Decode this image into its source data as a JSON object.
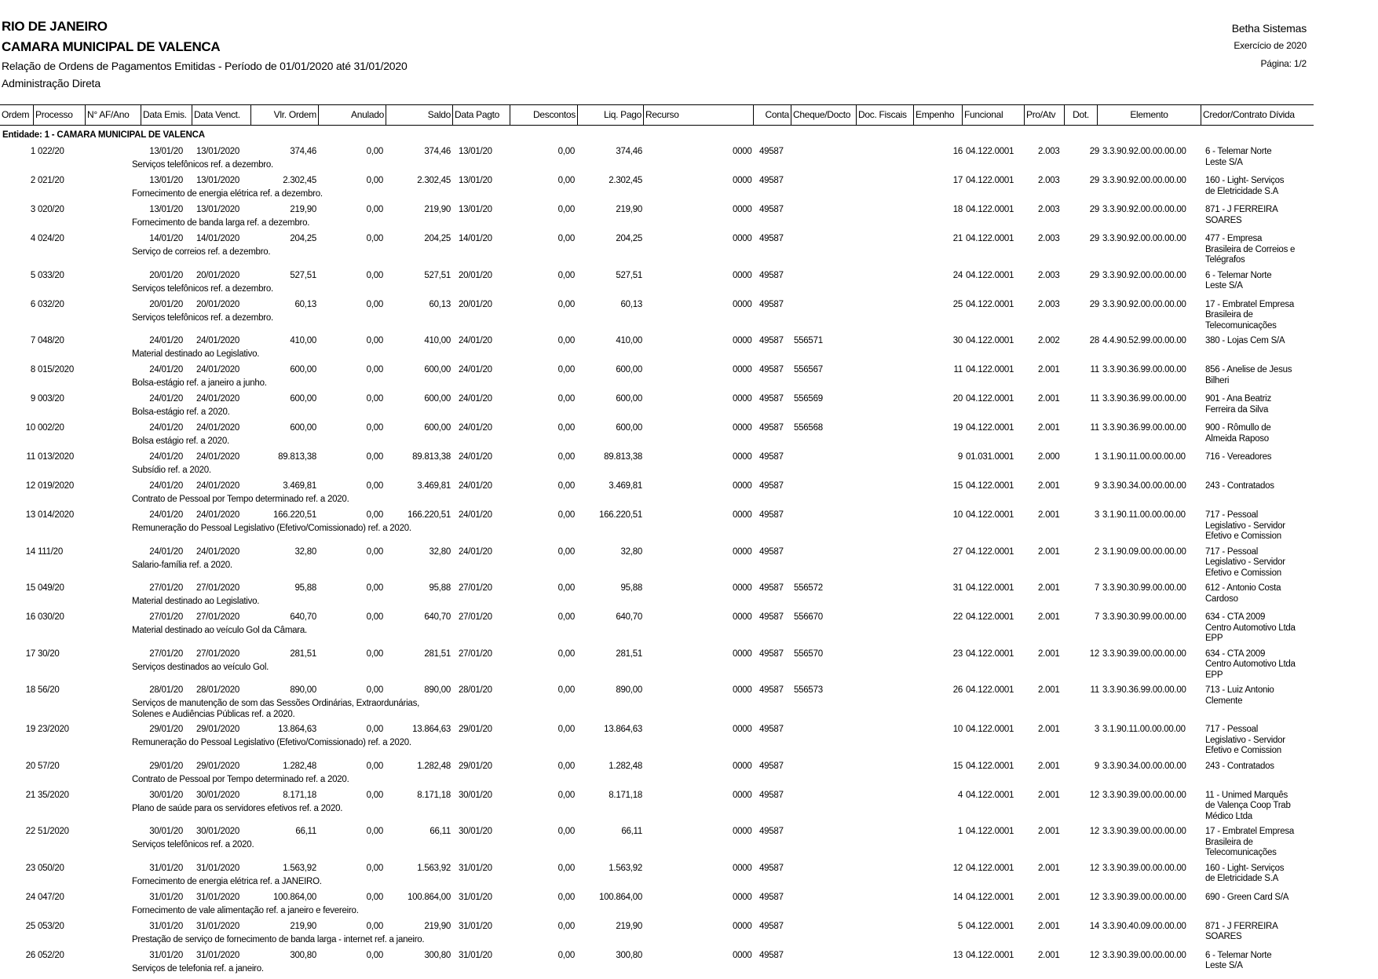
{
  "header": {
    "state": "RIO DE JANEIRO",
    "entity": "CAMARA MUNICIPAL DE VALENCA",
    "report_title": "Relação de Ordens de Pagamentos Emitidas - Período de 01/01/2020 até 31/01/2020",
    "administration": "Administração Direta",
    "vendor": "Betha Sistemas",
    "exercise": "Exercício de 2020",
    "page": "Página: 1/2"
  },
  "columns": [
    "Ordem",
    "Processo",
    "N° AF/Ano",
    "Data Emis.",
    "Data Venct.",
    "Vlr. Ordem",
    "Anulado",
    "Saldo",
    "Data Pagto",
    "Descontos",
    "Liq. Pago",
    "Recurso",
    "Conta",
    "Cheque/Docto",
    "Doc. Fiscais",
    "Empenho",
    "Funcional",
    "Pro/Atv",
    "Dot.",
    "Elemento",
    "Credor/Contrato Dívida"
  ],
  "entity_group": "Entidade: 1 - CAMARA MUNICIPAL DE VALENCA",
  "rows": [
    {
      "ordem": "1",
      "processo": "022/20",
      "emis": "13/01/20",
      "venct": "13/01/2020",
      "vlr": "374,46",
      "anulado": "0,00",
      "saldo": "374,46",
      "pagto": "13/01/20",
      "descontos": "0,00",
      "liq": "374,46",
      "recurso": "0000",
      "conta": "49587",
      "cheque": "",
      "empenho": "16",
      "funcional": "04.122.0001",
      "proatv": "2.003",
      "dot": "29",
      "elemento": "3.3.90.92.00.00.00.00",
      "credor": "6 - Telemar Norte\nLeste S/A",
      "desc": "Serviços telefônicos ref. a dezembro."
    },
    {
      "ordem": "2",
      "processo": "021/20",
      "emis": "13/01/20",
      "venct": "13/01/2020",
      "vlr": "2.302,45",
      "anulado": "0,00",
      "saldo": "2.302,45",
      "pagto": "13/01/20",
      "descontos": "0,00",
      "liq": "2.302,45",
      "recurso": "0000",
      "conta": "49587",
      "cheque": "",
      "empenho": "17",
      "funcional": "04.122.0001",
      "proatv": "2.003",
      "dot": "29",
      "elemento": "3.3.90.92.00.00.00.00",
      "credor": "160 - Light- Serviços\nde Eletricidade S.A",
      "desc": "Fornecimento de energia elétrica ref. a dezembro."
    },
    {
      "ordem": "3",
      "processo": "020/20",
      "emis": "13/01/20",
      "venct": "13/01/2020",
      "vlr": "219,90",
      "anulado": "0,00",
      "saldo": "219,90",
      "pagto": "13/01/20",
      "descontos": "0,00",
      "liq": "219,90",
      "recurso": "0000",
      "conta": "49587",
      "cheque": "",
      "empenho": "18",
      "funcional": "04.122.0001",
      "proatv": "2.003",
      "dot": "29",
      "elemento": "3.3.90.92.00.00.00.00",
      "credor": "871 - J FERREIRA\nSOARES",
      "desc": "Fornecimento de banda larga ref. a dezembro."
    },
    {
      "ordem": "4",
      "processo": "024/20",
      "emis": "14/01/20",
      "venct": "14/01/2020",
      "vlr": "204,25",
      "anulado": "0,00",
      "saldo": "204,25",
      "pagto": "14/01/20",
      "descontos": "0,00",
      "liq": "204,25",
      "recurso": "0000",
      "conta": "49587",
      "cheque": "",
      "empenho": "21",
      "funcional": "04.122.0001",
      "proatv": "2.003",
      "dot": "29",
      "elemento": "3.3.90.92.00.00.00.00",
      "credor": "477 - Empresa\nBrasileira de Correios e\nTelégrafos",
      "desc": "Serviço de correios ref. a dezembro."
    },
    {
      "ordem": "5",
      "processo": "033/20",
      "emis": "20/01/20",
      "venct": "20/01/2020",
      "vlr": "527,51",
      "anulado": "0,00",
      "saldo": "527,51",
      "pagto": "20/01/20",
      "descontos": "0,00",
      "liq": "527,51",
      "recurso": "0000",
      "conta": "49587",
      "cheque": "",
      "empenho": "24",
      "funcional": "04.122.0001",
      "proatv": "2.003",
      "dot": "29",
      "elemento": "3.3.90.92.00.00.00.00",
      "credor": "6 - Telemar Norte\nLeste S/A",
      "desc": "Serviços telefônicos ref. a dezembro."
    },
    {
      "ordem": "6",
      "processo": "032/20",
      "emis": "20/01/20",
      "venct": "20/01/2020",
      "vlr": "60,13",
      "anulado": "0,00",
      "saldo": "60,13",
      "pagto": "20/01/20",
      "descontos": "0,00",
      "liq": "60,13",
      "recurso": "0000",
      "conta": "49587",
      "cheque": "",
      "empenho": "25",
      "funcional": "04.122.0001",
      "proatv": "2.003",
      "dot": "29",
      "elemento": "3.3.90.92.00.00.00.00",
      "credor": "17 - Embratel Empresa\nBrasileira de\nTelecomunicações",
      "desc": "Serviços telefônicos ref. a dezembro."
    },
    {
      "ordem": "7",
      "processo": "048/20",
      "emis": "24/01/20",
      "venct": "24/01/2020",
      "vlr": "410,00",
      "anulado": "0,00",
      "saldo": "410,00",
      "pagto": "24/01/20",
      "descontos": "0,00",
      "liq": "410,00",
      "recurso": "0000",
      "conta": "49587",
      "cheque": "556571",
      "empenho": "30",
      "funcional": "04.122.0001",
      "proatv": "2.002",
      "dot": "28",
      "elemento": "4.4.90.52.99.00.00.00",
      "credor": "380 - Lojas Cem S/A",
      "desc": "Material destinado ao Legislativo."
    },
    {
      "ordem": "8",
      "processo": "015/2020",
      "emis": "24/01/20",
      "venct": "24/01/2020",
      "vlr": "600,00",
      "anulado": "0,00",
      "saldo": "600,00",
      "pagto": "24/01/20",
      "descontos": "0,00",
      "liq": "600,00",
      "recurso": "0000",
      "conta": "49587",
      "cheque": "556567",
      "empenho": "11",
      "funcional": "04.122.0001",
      "proatv": "2.001",
      "dot": "11",
      "elemento": "3.3.90.36.99.00.00.00",
      "credor": "856 - Anelise de Jesus\nBilheri",
      "desc": "Bolsa-estágio ref. a janeiro a junho."
    },
    {
      "ordem": "9",
      "processo": "003/20",
      "emis": "24/01/20",
      "venct": "24/01/2020",
      "vlr": "600,00",
      "anulado": "0,00",
      "saldo": "600,00",
      "pagto": "24/01/20",
      "descontos": "0,00",
      "liq": "600,00",
      "recurso": "0000",
      "conta": "49587",
      "cheque": "556569",
      "empenho": "20",
      "funcional": "04.122.0001",
      "proatv": "2.001",
      "dot": "11",
      "elemento": "3.3.90.36.99.00.00.00",
      "credor": "901 - Ana Beatriz\nFerreira da Silva",
      "desc": "Bolsa-estágio ref. a 2020."
    },
    {
      "ordem": "10",
      "processo": "002/20",
      "emis": "24/01/20",
      "venct": "24/01/2020",
      "vlr": "600,00",
      "anulado": "0,00",
      "saldo": "600,00",
      "pagto": "24/01/20",
      "descontos": "0,00",
      "liq": "600,00",
      "recurso": "0000",
      "conta": "49587",
      "cheque": "556568",
      "empenho": "19",
      "funcional": "04.122.0001",
      "proatv": "2.001",
      "dot": "11",
      "elemento": "3.3.90.36.99.00.00.00",
      "credor": "900 - Rômullo de\nAlmeida Raposo",
      "desc": "Bolsa estágio ref. a 2020."
    },
    {
      "ordem": "11",
      "processo": "013/2020",
      "emis": "24/01/20",
      "venct": "24/01/2020",
      "vlr": "89.813,38",
      "anulado": "0,00",
      "saldo": "89.813,38",
      "pagto": "24/01/20",
      "descontos": "0,00",
      "liq": "89.813,38",
      "recurso": "0000",
      "conta": "49587",
      "cheque": "",
      "empenho": "9",
      "funcional": "01.031.0001",
      "proatv": "2.000",
      "dot": "1",
      "elemento": "3.1.90.11.00.00.00.00",
      "credor": "716 - Vereadores",
      "desc": "Subsídio ref. a 2020."
    },
    {
      "ordem": "12",
      "processo": "019/2020",
      "emis": "24/01/20",
      "venct": "24/01/2020",
      "vlr": "3.469,81",
      "anulado": "0,00",
      "saldo": "3.469,81",
      "pagto": "24/01/20",
      "descontos": "0,00",
      "liq": "3.469,81",
      "recurso": "0000",
      "conta": "49587",
      "cheque": "",
      "empenho": "15",
      "funcional": "04.122.0001",
      "proatv": "2.001",
      "dot": "9",
      "elemento": "3.3.90.34.00.00.00.00",
      "credor": "243 - Contratados",
      "desc": "Contrato de Pessoal por Tempo determinado ref. a 2020."
    },
    {
      "ordem": "13",
      "processo": "014/2020",
      "emis": "24/01/20",
      "venct": "24/01/2020",
      "vlr": "166.220,51",
      "anulado": "0,00",
      "saldo": "166.220,51",
      "pagto": "24/01/20",
      "descontos": "0,00",
      "liq": "166.220,51",
      "recurso": "0000",
      "conta": "49587",
      "cheque": "",
      "empenho": "10",
      "funcional": "04.122.0001",
      "proatv": "2.001",
      "dot": "3",
      "elemento": "3.1.90.11.00.00.00.00",
      "credor": "717 - Pessoal\nLegislativo - Servidor\nEfetivo e Comission",
      "desc": "Remuneração do Pessoal Legislativo (Efetivo/Comissionado) ref. a 2020."
    },
    {
      "ordem": "14",
      "processo": "111/20",
      "emis": "24/01/20",
      "venct": "24/01/2020",
      "vlr": "32,80",
      "anulado": "0,00",
      "saldo": "32,80",
      "pagto": "24/01/20",
      "descontos": "0,00",
      "liq": "32,80",
      "recurso": "0000",
      "conta": "49587",
      "cheque": "",
      "empenho": "27",
      "funcional": "04.122.0001",
      "proatv": "2.001",
      "dot": "2",
      "elemento": "3.1.90.09.00.00.00.00",
      "credor": "717 - Pessoal\nLegislativo - Servidor\nEfetivo e Comission",
      "desc": "Salario-família ref. a 2020."
    },
    {
      "ordem": "15",
      "processo": "049/20",
      "emis": "27/01/20",
      "venct": "27/01/2020",
      "vlr": "95,88",
      "anulado": "0,00",
      "saldo": "95,88",
      "pagto": "27/01/20",
      "descontos": "0,00",
      "liq": "95,88",
      "recurso": "0000",
      "conta": "49587",
      "cheque": "556572",
      "empenho": "31",
      "funcional": "04.122.0001",
      "proatv": "2.001",
      "dot": "7",
      "elemento": "3.3.90.30.99.00.00.00",
      "credor": "612 - Antonio Costa\nCardoso",
      "desc": "Material destinado ao Legislativo."
    },
    {
      "ordem": "16",
      "processo": "030/20",
      "emis": "27/01/20",
      "venct": "27/01/2020",
      "vlr": "640,70",
      "anulado": "0,00",
      "saldo": "640,70",
      "pagto": "27/01/20",
      "descontos": "0,00",
      "liq": "640,70",
      "recurso": "0000",
      "conta": "49587",
      "cheque": "556670",
      "empenho": "22",
      "funcional": "04.122.0001",
      "proatv": "2.001",
      "dot": "7",
      "elemento": "3.3.90.30.99.00.00.00",
      "credor": "634 - CTA 2009\nCentro Automotivo Ltda\nEPP",
      "desc": "Material destinado ao veículo Gol da Câmara."
    },
    {
      "ordem": "17",
      "processo": "30/20",
      "emis": "27/01/20",
      "venct": "27/01/2020",
      "vlr": "281,51",
      "anulado": "0,00",
      "saldo": "281,51",
      "pagto": "27/01/20",
      "descontos": "0,00",
      "liq": "281,51",
      "recurso": "0000",
      "conta": "49587",
      "cheque": "556570",
      "empenho": "23",
      "funcional": "04.122.0001",
      "proatv": "2.001",
      "dot": "12",
      "elemento": "3.3.90.39.00.00.00.00",
      "credor": "634 - CTA 2009\nCentro Automotivo Ltda\nEPP",
      "desc": "Serviços destinados ao veículo Gol."
    },
    {
      "ordem": "18",
      "processo": "56/20",
      "emis": "28/01/20",
      "venct": "28/01/2020",
      "vlr": "890,00",
      "anulado": "0,00",
      "saldo": "890,00",
      "pagto": "28/01/20",
      "descontos": "0,00",
      "liq": "890,00",
      "recurso": "0000",
      "conta": "49587",
      "cheque": "556573",
      "empenho": "26",
      "funcional": "04.122.0001",
      "proatv": "2.001",
      "dot": "11",
      "elemento": "3.3.90.36.99.00.00.00",
      "credor": "713 - Luiz Antonio\nClemente",
      "desc": "Serviços de manutenção de som das Sessões Ordinárias, Extraordunárias,\nSolenes e Audiências Públicas ref. a 2020."
    },
    {
      "ordem": "19",
      "processo": "23/2020",
      "emis": "29/01/20",
      "venct": "29/01/2020",
      "vlr": "13.864,63",
      "anulado": "0,00",
      "saldo": "13.864,63",
      "pagto": "29/01/20",
      "descontos": "0,00",
      "liq": "13.864,63",
      "recurso": "0000",
      "conta": "49587",
      "cheque": "",
      "empenho": "10",
      "funcional": "04.122.0001",
      "proatv": "2.001",
      "dot": "3",
      "elemento": "3.1.90.11.00.00.00.00",
      "credor": "717 - Pessoal\nLegislativo - Servidor\nEfetivo e Comission",
      "desc": "Remuneração do Pessoal Legislativo (Efetivo/Comissionado) ref. a 2020."
    },
    {
      "ordem": "20",
      "processo": "57/20",
      "emis": "29/01/20",
      "venct": "29/01/2020",
      "vlr": "1.282,48",
      "anulado": "0,00",
      "saldo": "1.282,48",
      "pagto": "29/01/20",
      "descontos": "0,00",
      "liq": "1.282,48",
      "recurso": "0000",
      "conta": "49587",
      "cheque": "",
      "empenho": "15",
      "funcional": "04.122.0001",
      "proatv": "2.001",
      "dot": "9",
      "elemento": "3.3.90.34.00.00.00.00",
      "credor": "243 - Contratados",
      "desc": "Contrato de Pessoal por Tempo determinado ref. a 2020."
    },
    {
      "ordem": "21",
      "processo": "35/2020",
      "emis": "30/01/20",
      "venct": "30/01/2020",
      "vlr": "8.171,18",
      "anulado": "0,00",
      "saldo": "8.171,18",
      "pagto": "30/01/20",
      "descontos": "0,00",
      "liq": "8.171,18",
      "recurso": "0000",
      "conta": "49587",
      "cheque": "",
      "empenho": "4",
      "funcional": "04.122.0001",
      "proatv": "2.001",
      "dot": "12",
      "elemento": "3.3.90.39.00.00.00.00",
      "credor": "11 - Unimed Marquês\nde Valença Coop Trab\nMédico Ltda",
      "desc": "Plano de saúde para os servidores efetivos ref. a 2020."
    },
    {
      "ordem": "22",
      "processo": "51/2020",
      "emis": "30/01/20",
      "venct": "30/01/2020",
      "vlr": "66,11",
      "anulado": "0,00",
      "saldo": "66,11",
      "pagto": "30/01/20",
      "descontos": "0,00",
      "liq": "66,11",
      "recurso": "0000",
      "conta": "49587",
      "cheque": "",
      "empenho": "1",
      "funcional": "04.122.0001",
      "proatv": "2.001",
      "dot": "12",
      "elemento": "3.3.90.39.00.00.00.00",
      "credor": "17 - Embratel Empresa\nBrasileira de\nTelecomunicações",
      "desc": "Serviços telefônicos ref. a 2020."
    },
    {
      "ordem": "23",
      "processo": "050/20",
      "emis": "31/01/20",
      "venct": "31/01/2020",
      "vlr": "1.563,92",
      "anulado": "0,00",
      "saldo": "1.563,92",
      "pagto": "31/01/20",
      "descontos": "0,00",
      "liq": "1.563,92",
      "recurso": "0000",
      "conta": "49587",
      "cheque": "",
      "empenho": "12",
      "funcional": "04.122.0001",
      "proatv": "2.001",
      "dot": "12",
      "elemento": "3.3.90.39.00.00.00.00",
      "credor": "160 - Light- Serviços\nde Eletricidade S.A",
      "desc": "Fornecimento de energia elétrica ref. a JANEIRO."
    },
    {
      "ordem": "24",
      "processo": "047/20",
      "emis": "31/01/20",
      "venct": "31/01/2020",
      "vlr": "100.864,00",
      "anulado": "0,00",
      "saldo": "100.864,00",
      "pagto": "31/01/20",
      "descontos": "0,00",
      "liq": "100.864,00",
      "recurso": "0000",
      "conta": "49587",
      "cheque": "",
      "empenho": "14",
      "funcional": "04.122.0001",
      "proatv": "2.001",
      "dot": "12",
      "elemento": "3.3.90.39.00.00.00.00",
      "credor": "690 - Green Card S/A",
      "desc": "Fornecimento de vale alimentação ref. a janeiro e fevereiro."
    },
    {
      "ordem": "25",
      "processo": "053/20",
      "emis": "31/01/20",
      "venct": "31/01/2020",
      "vlr": "219,90",
      "anulado": "0,00",
      "saldo": "219,90",
      "pagto": "31/01/20",
      "descontos": "0,00",
      "liq": "219,90",
      "recurso": "0000",
      "conta": "49587",
      "cheque": "",
      "empenho": "5",
      "funcional": "04.122.0001",
      "proatv": "2.001",
      "dot": "14",
      "elemento": "3.3.90.40.09.00.00.00",
      "credor": "871 - J FERREIRA\nSOARES",
      "desc": "Prestação de serviço de fornecimento de banda larga - internet ref. a janeiro."
    },
    {
      "ordem": "26",
      "processo": "052/20",
      "emis": "31/01/20",
      "venct": "31/01/2020",
      "vlr": "300,80",
      "anulado": "0,00",
      "saldo": "300,80",
      "pagto": "31/01/20",
      "descontos": "0,00",
      "liq": "300,80",
      "recurso": "0000",
      "conta": "49587",
      "cheque": "",
      "empenho": "13",
      "funcional": "04.122.0001",
      "proatv": "2.001",
      "dot": "12",
      "elemento": "3.3.90.39.00.00.00.00",
      "credor": "6 - Telemar Norte\nLeste S/A",
      "desc": "Serviços de telefonia ref. a janeiro."
    }
  ]
}
